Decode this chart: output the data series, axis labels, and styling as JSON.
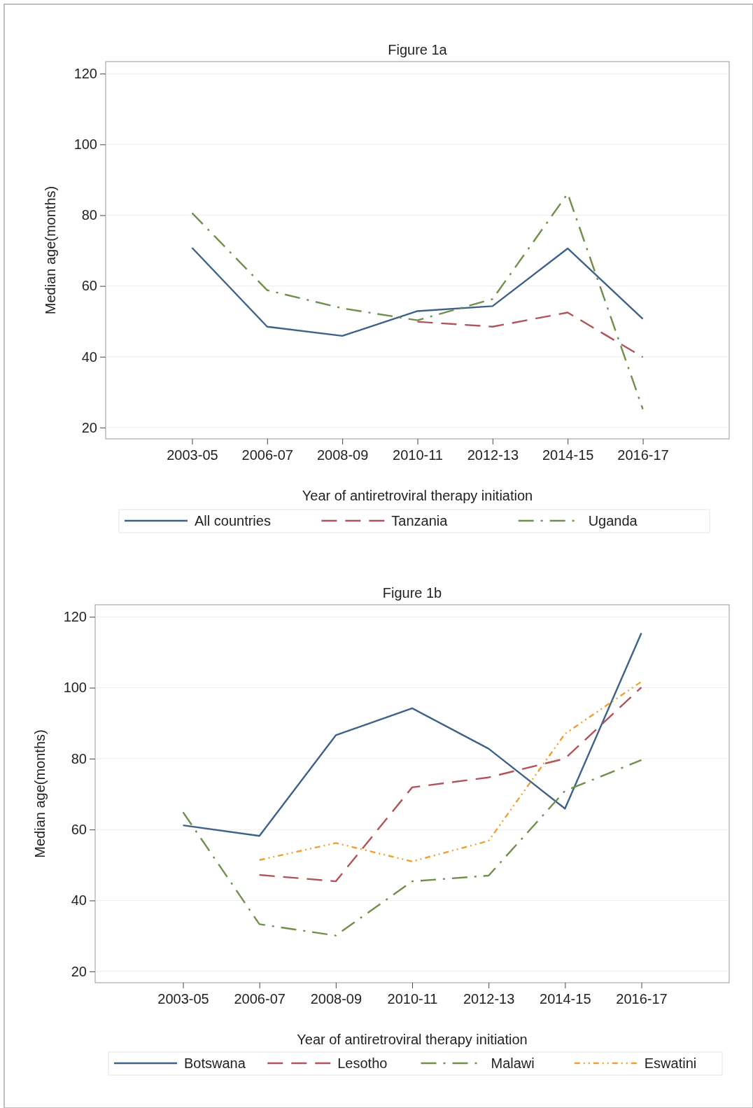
{
  "chart_data": [
    {
      "type": "line",
      "title": "Figure 1a",
      "xlabel": "Year of antiretroviral therapy initiation",
      "ylabel": "Median age(months)",
      "categories": [
        "2003-05",
        "2006-07",
        "2008-09",
        "2010-11",
        "2012-13",
        "2014-15",
        "2016-17"
      ],
      "ylim": [
        16.8,
        123.4
      ],
      "yticks": [
        20,
        40,
        60,
        80,
        100,
        120
      ],
      "grid": "y",
      "legend": "bottom",
      "series": [
        {
          "name": "All countries",
          "color": "#3e6187",
          "line_style": "solid",
          "values": [
            70.8,
            48.5,
            45.9,
            52.9,
            54.3,
            70.6,
            50.7
          ]
        },
        {
          "name": "Tanzania",
          "color": "#b0535a",
          "line_style": "dashed",
          "values": [
            null,
            null,
            null,
            49.9,
            48.5,
            52.5,
            39.9
          ]
        },
        {
          "name": "Uganda",
          "color": "#6f8f4a",
          "line_style": "dashdot",
          "values": [
            80.6,
            58.8,
            53.7,
            50.3,
            56.3,
            86.1,
            25.2
          ]
        }
      ]
    },
    {
      "type": "line",
      "title": "Figure 1b",
      "xlabel": "Year of antiretroviral therapy initiation",
      "ylabel": "Median age(months)",
      "categories": [
        "2003-05",
        "2006-07",
        "2008-09",
        "2010-11",
        "2012-13",
        "2014-15",
        "2016-17"
      ],
      "ylim": [
        16.8,
        123.4
      ],
      "yticks": [
        20,
        40,
        60,
        80,
        100,
        120
      ],
      "grid": "y",
      "legend": "bottom",
      "series": [
        {
          "name": "Botswana",
          "color": "#3e6187",
          "line_style": "solid",
          "values": [
            61.2,
            58.2,
            86.6,
            94.2,
            82.8,
            65.9,
            115.4
          ]
        },
        {
          "name": "Lesotho",
          "color": "#b0535a",
          "line_style": "dashed",
          "values": [
            null,
            47.2,
            45.4,
            71.9,
            74.7,
            80.0,
            100.1
          ]
        },
        {
          "name": "Malawi",
          "color": "#6f8f4a",
          "line_style": "dashdot",
          "values": [
            64.9,
            33.3,
            30.1,
            45.4,
            47.0,
            70.9,
            79.6
          ]
        },
        {
          "name": "Eswatini",
          "color": "#f0a030",
          "line_style": "dotted",
          "values": [
            null,
            51.4,
            56.2,
            51.0,
            56.8,
            87.0,
            101.7
          ]
        }
      ]
    }
  ]
}
